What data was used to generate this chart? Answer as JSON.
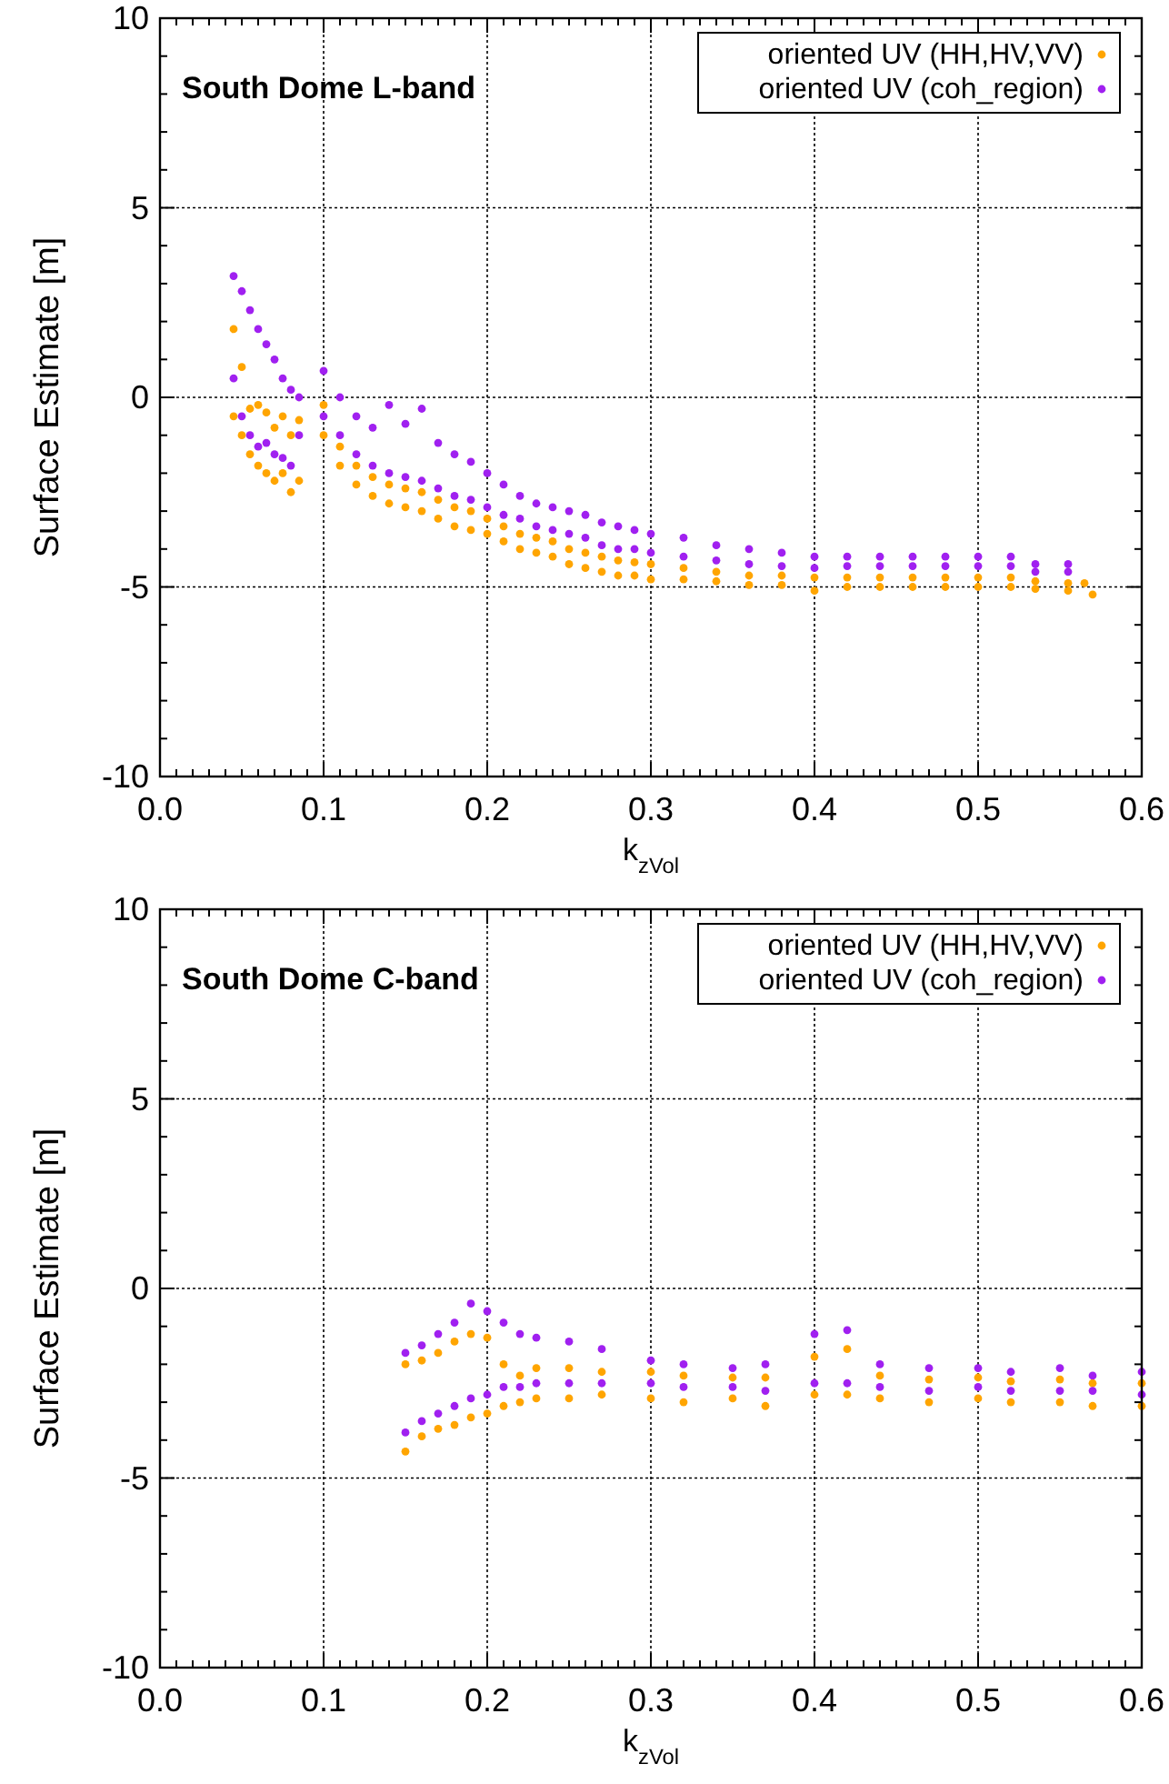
{
  "chart_data": [
    {
      "type": "scatter",
      "title": "South Dome L-band",
      "xlabel": "k$_{zVol}$",
      "ylabel": "Surface Estimate [m]",
      "xlim": [
        0,
        0.6
      ],
      "xticks": [
        {
          "value": 0,
          "label": "0.0"
        },
        0.1,
        0.2,
        0.3,
        0.4,
        0.5,
        0.6
      ],
      "ylim": [
        -10,
        10
      ],
      "yticks": [
        -10,
        -5,
        0,
        5,
        10
      ],
      "grid": true,
      "legend": "top right",
      "marker": "circle",
      "series": [
        {
          "name": "oriented UV (HH,HV,VV)",
          "color": "#ffa500",
          "x": [
            0.045,
            0.045,
            0.05,
            0.05,
            0.055,
            0.055,
            0.06,
            0.06,
            0.065,
            0.065,
            0.07,
            0.07,
            0.075,
            0.075,
            0.08,
            0.08,
            0.085,
            0.085,
            0.1,
            0.1,
            0.11,
            0.11,
            0.12,
            0.12,
            0.13,
            0.13,
            0.14,
            0.14,
            0.15,
            0.15,
            0.16,
            0.16,
            0.17,
            0.17,
            0.18,
            0.18,
            0.19,
            0.19,
            0.2,
            0.2,
            0.21,
            0.21,
            0.22,
            0.22,
            0.23,
            0.23,
            0.24,
            0.24,
            0.25,
            0.25,
            0.26,
            0.26,
            0.27,
            0.27,
            0.28,
            0.28,
            0.29,
            0.29,
            0.3,
            0.3,
            0.32,
            0.32,
            0.34,
            0.34,
            0.36,
            0.36,
            0.38,
            0.38,
            0.4,
            0.4,
            0.42,
            0.42,
            0.44,
            0.44,
            0.46,
            0.46,
            0.48,
            0.48,
            0.5,
            0.5,
            0.52,
            0.52,
            0.535,
            0.535,
            0.555,
            0.555,
            0.565,
            0.57
          ],
          "values": [
            1.8,
            -0.5,
            0.8,
            -1.0,
            -0.3,
            -1.5,
            -0.2,
            -1.8,
            -0.4,
            -2.0,
            -0.8,
            -2.2,
            -0.5,
            -2.0,
            -1.0,
            -2.5,
            -0.6,
            -2.2,
            -0.2,
            -1.0,
            -1.3,
            -1.8,
            -1.8,
            -2.3,
            -2.1,
            -2.6,
            -2.3,
            -2.8,
            -2.4,
            -2.9,
            -2.5,
            -3.0,
            -2.7,
            -3.2,
            -2.9,
            -3.4,
            -3.0,
            -3.5,
            -3.2,
            -3.6,
            -3.4,
            -3.8,
            -3.6,
            -4.0,
            -3.7,
            -4.1,
            -3.8,
            -4.2,
            -4.0,
            -4.4,
            -4.1,
            -4.5,
            -4.2,
            -4.6,
            -4.3,
            -4.7,
            -4.35,
            -4.7,
            -4.4,
            -4.8,
            -4.5,
            -4.8,
            -4.6,
            -4.85,
            -4.7,
            -4.95,
            -4.7,
            -4.95,
            -4.75,
            -5.1,
            -4.75,
            -5.0,
            -4.75,
            -5.0,
            -4.75,
            -5.0,
            -4.75,
            -5.0,
            -4.75,
            -5.0,
            -4.75,
            -5.0,
            -4.85,
            -5.05,
            -4.9,
            -5.1,
            -4.9,
            -5.2
          ]
        },
        {
          "name": "oriented UV (coh_region)",
          "color": "#a020f0",
          "x": [
            0.045,
            0.045,
            0.05,
            0.05,
            0.055,
            0.055,
            0.06,
            0.06,
            0.065,
            0.065,
            0.07,
            0.07,
            0.075,
            0.075,
            0.08,
            0.08,
            0.085,
            0.085,
            0.1,
            0.1,
            0.11,
            0.11,
            0.12,
            0.12,
            0.13,
            0.13,
            0.14,
            0.14,
            0.15,
            0.15,
            0.16,
            0.16,
            0.17,
            0.17,
            0.18,
            0.18,
            0.19,
            0.19,
            0.2,
            0.2,
            0.21,
            0.21,
            0.22,
            0.22,
            0.23,
            0.23,
            0.24,
            0.24,
            0.25,
            0.25,
            0.26,
            0.26,
            0.27,
            0.27,
            0.28,
            0.28,
            0.29,
            0.29,
            0.3,
            0.3,
            0.32,
            0.32,
            0.34,
            0.34,
            0.36,
            0.36,
            0.38,
            0.38,
            0.4,
            0.4,
            0.42,
            0.42,
            0.44,
            0.44,
            0.46,
            0.46,
            0.48,
            0.48,
            0.5,
            0.5,
            0.52,
            0.52,
            0.535,
            0.535,
            0.555,
            0.555
          ],
          "values": [
            3.2,
            0.5,
            2.8,
            -0.5,
            2.3,
            -1.0,
            1.8,
            -1.3,
            1.4,
            -1.2,
            1.0,
            -1.5,
            0.5,
            -1.6,
            0.2,
            -1.8,
            0.0,
            -1.0,
            0.7,
            -0.5,
            0.0,
            -1.0,
            -0.5,
            -1.5,
            -0.8,
            -1.8,
            -0.2,
            -2.0,
            -0.7,
            -2.1,
            -0.3,
            -2.2,
            -1.2,
            -2.4,
            -1.5,
            -2.6,
            -1.7,
            -2.7,
            -2.0,
            -2.9,
            -2.3,
            -3.1,
            -2.6,
            -3.2,
            -2.8,
            -3.4,
            -2.9,
            -3.5,
            -3.0,
            -3.6,
            -3.1,
            -3.7,
            -3.3,
            -3.9,
            -3.4,
            -4.0,
            -3.5,
            -4.0,
            -3.6,
            -4.1,
            -3.7,
            -4.2,
            -3.9,
            -4.3,
            -4.0,
            -4.4,
            -4.1,
            -4.45,
            -4.2,
            -4.5,
            -4.2,
            -4.45,
            -4.2,
            -4.45,
            -4.2,
            -4.45,
            -4.2,
            -4.45,
            -4.2,
            -4.45,
            -4.2,
            -4.45,
            -4.4,
            -4.6,
            -4.4,
            -4.6
          ]
        }
      ]
    },
    {
      "type": "scatter",
      "title": "South Dome C-band",
      "xlabel": "k$_{zVol}$",
      "ylabel": "Surface Estimate [m]",
      "xlim": [
        0,
        0.6
      ],
      "xticks": [
        {
          "value": 0,
          "label": "0.0"
        },
        0.1,
        0.2,
        0.3,
        0.4,
        0.5,
        0.6
      ],
      "ylim": [
        -10,
        10
      ],
      "yticks": [
        -10,
        -5,
        0,
        5,
        10
      ],
      "grid": true,
      "legend": "top right",
      "marker": "circle",
      "series": [
        {
          "name": "oriented UV (HH,HV,VV)",
          "color": "#ffa500",
          "x": [
            0.15,
            0.15,
            0.16,
            0.16,
            0.17,
            0.17,
            0.18,
            0.18,
            0.19,
            0.19,
            0.2,
            0.2,
            0.21,
            0.21,
            0.22,
            0.22,
            0.23,
            0.23,
            0.25,
            0.25,
            0.27,
            0.27,
            0.3,
            0.3,
            0.32,
            0.32,
            0.35,
            0.35,
            0.37,
            0.37,
            0.4,
            0.4,
            0.42,
            0.42,
            0.44,
            0.44,
            0.47,
            0.47,
            0.5,
            0.5,
            0.52,
            0.52,
            0.55,
            0.55,
            0.57,
            0.57,
            0.6,
            0.6
          ],
          "values": [
            -2.0,
            -4.3,
            -1.9,
            -3.9,
            -1.7,
            -3.7,
            -1.4,
            -3.6,
            -1.2,
            -3.4,
            -1.3,
            -3.3,
            -2.0,
            -3.1,
            -2.3,
            -3.0,
            -2.1,
            -2.9,
            -2.1,
            -2.9,
            -2.2,
            -2.8,
            -2.2,
            -2.9,
            -2.3,
            -3.0,
            -2.35,
            -2.9,
            -2.35,
            -3.1,
            -1.8,
            -2.8,
            -1.6,
            -2.8,
            -2.3,
            -2.9,
            -2.4,
            -3.0,
            -2.35,
            -2.9,
            -2.45,
            -3.0,
            -2.4,
            -3.0,
            -2.5,
            -3.1,
            -2.5,
            -3.1
          ]
        },
        {
          "name": "oriented UV (coh_region)",
          "color": "#a020f0",
          "x": [
            0.15,
            0.15,
            0.16,
            0.16,
            0.17,
            0.17,
            0.18,
            0.18,
            0.19,
            0.19,
            0.2,
            0.2,
            0.21,
            0.21,
            0.22,
            0.22,
            0.23,
            0.23,
            0.25,
            0.25,
            0.27,
            0.27,
            0.3,
            0.3,
            0.32,
            0.32,
            0.35,
            0.35,
            0.37,
            0.37,
            0.4,
            0.4,
            0.42,
            0.42,
            0.44,
            0.44,
            0.47,
            0.47,
            0.5,
            0.5,
            0.52,
            0.52,
            0.55,
            0.55,
            0.57,
            0.57,
            0.6,
            0.6
          ],
          "values": [
            -1.7,
            -3.8,
            -1.5,
            -3.5,
            -1.2,
            -3.3,
            -0.9,
            -3.1,
            -0.4,
            -2.9,
            -0.6,
            -2.8,
            -0.9,
            -2.6,
            -1.2,
            -2.6,
            -1.3,
            -2.5,
            -1.4,
            -2.5,
            -1.6,
            -2.5,
            -1.9,
            -2.5,
            -2.0,
            -2.6,
            -2.1,
            -2.6,
            -2.0,
            -2.7,
            -1.2,
            -2.5,
            -1.1,
            -2.5,
            -2.0,
            -2.6,
            -2.1,
            -2.7,
            -2.1,
            -2.6,
            -2.2,
            -2.7,
            -2.1,
            -2.7,
            -2.3,
            -2.7,
            -2.2,
            -2.8
          ]
        }
      ]
    }
  ]
}
